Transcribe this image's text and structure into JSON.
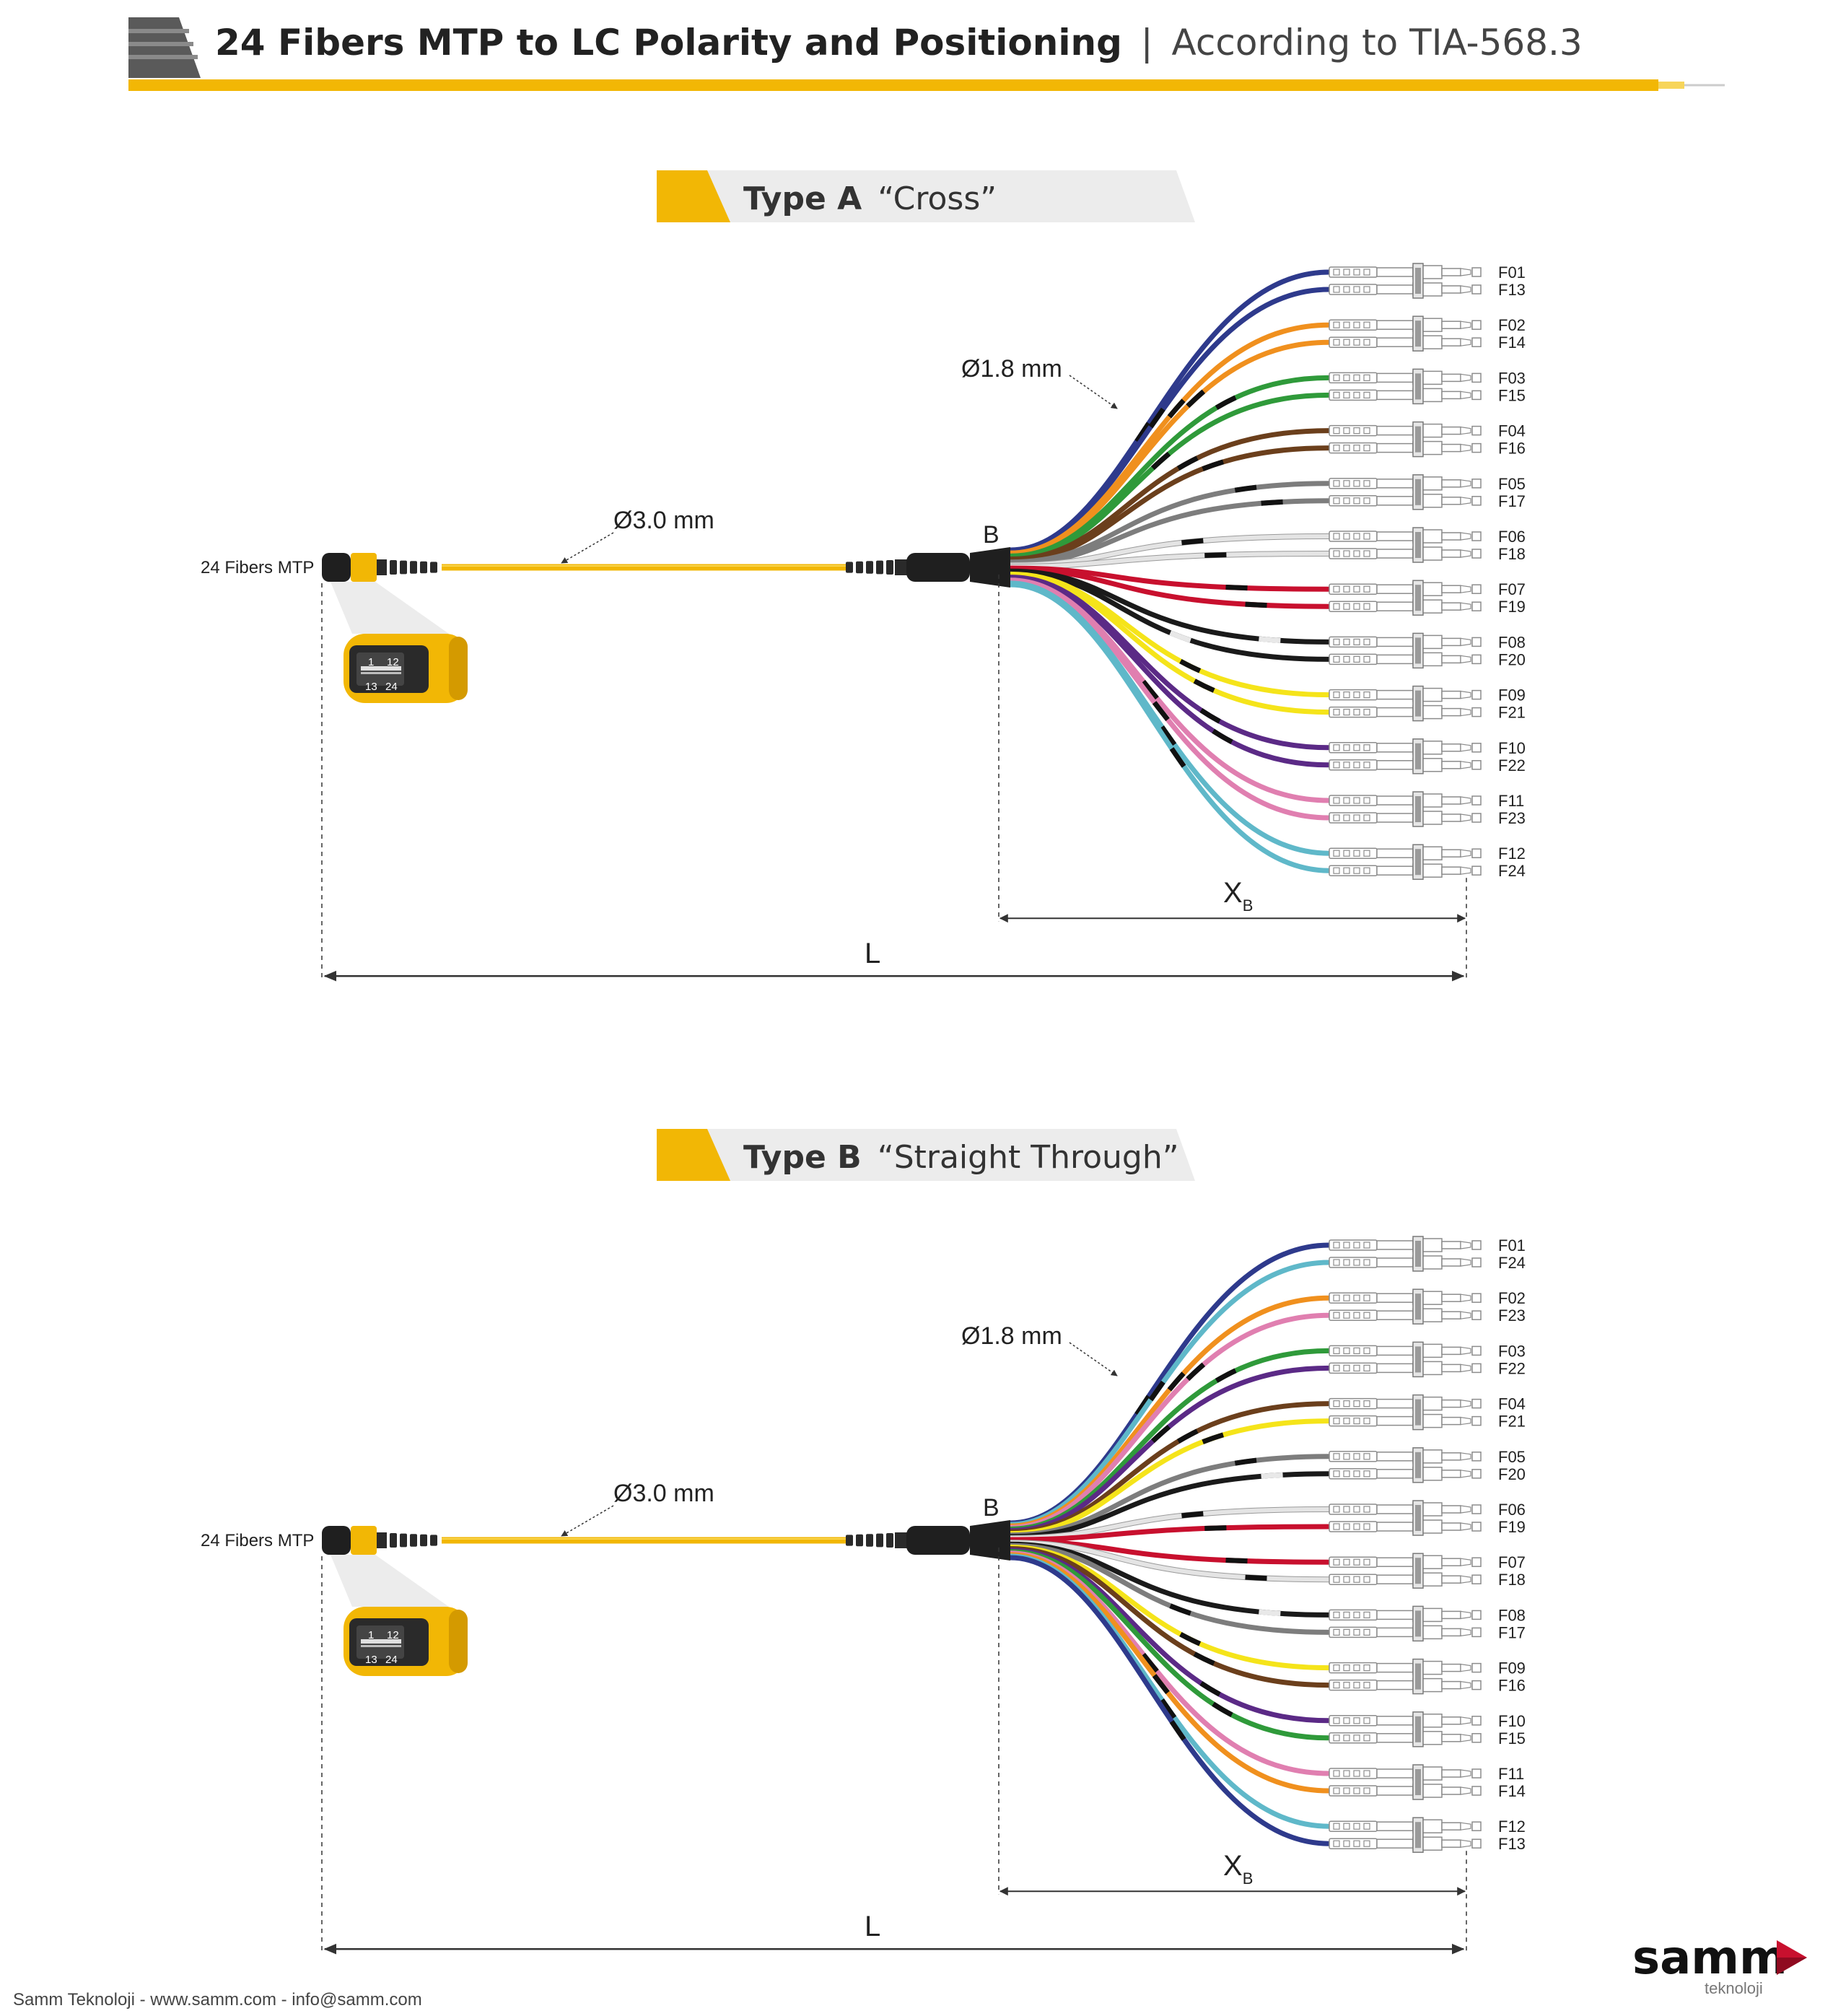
{
  "header": {
    "title_bold": "24 Fibers MTP to LC Polarity and Positioning",
    "title_sep": "|",
    "title_rest": "According to TIA-568.3"
  },
  "colors": {
    "accent_yellow": "#f2b705",
    "fiber": {
      "blue": "#2e3a8c",
      "orange": "#f0901e",
      "green": "#2f9a3a",
      "brown": "#6b3f1c",
      "slate": "#7d7d7d",
      "white": "#e4e4e4",
      "red": "#c8102e",
      "black": "#1a1a1a",
      "yellow": "#f5e41a",
      "violet": "#5b2a86",
      "rose": "#e07fb0",
      "aqua": "#5fb8c9"
    }
  },
  "sections": [
    {
      "id": "type-a",
      "type_bold": "Type A",
      "type_name": "“Cross”",
      "connector_label": "24 Fibers MTP",
      "trunk_diameter": "Ø3.0 mm",
      "breakout_diameter": "Ø1.8 mm",
      "breakout_point": "B",
      "dim_xb_main": "X",
      "dim_xb_sub": "B",
      "dim_l": "L",
      "mtp_rows": {
        "top_left": "1",
        "top_right": "12",
        "bottom_left": "13",
        "bottom_right": "24"
      },
      "pairs": [
        {
          "top": "F01",
          "bottom": "F13",
          "top_color": "blue",
          "bottom_color": "blue"
        },
        {
          "top": "F02",
          "bottom": "F14",
          "top_color": "orange",
          "bottom_color": "orange"
        },
        {
          "top": "F03",
          "bottom": "F15",
          "top_color": "green",
          "bottom_color": "green"
        },
        {
          "top": "F04",
          "bottom": "F16",
          "top_color": "brown",
          "bottom_color": "brown"
        },
        {
          "top": "F05",
          "bottom": "F17",
          "top_color": "slate",
          "bottom_color": "slate"
        },
        {
          "top": "F06",
          "bottom": "F18",
          "top_color": "white",
          "bottom_color": "white"
        },
        {
          "top": "F07",
          "bottom": "F19",
          "top_color": "red",
          "bottom_color": "red"
        },
        {
          "top": "F08",
          "bottom": "F20",
          "top_color": "black",
          "bottom_color": "black"
        },
        {
          "top": "F09",
          "bottom": "F21",
          "top_color": "yellow",
          "bottom_color": "yellow"
        },
        {
          "top": "F10",
          "bottom": "F22",
          "top_color": "violet",
          "bottom_color": "violet"
        },
        {
          "top": "F11",
          "bottom": "F23",
          "top_color": "rose",
          "bottom_color": "rose"
        },
        {
          "top": "F12",
          "bottom": "F24",
          "top_color": "aqua",
          "bottom_color": "aqua"
        }
      ]
    },
    {
      "id": "type-b",
      "type_bold": "Type B",
      "type_name": "“Straight Through”",
      "connector_label": "24 Fibers MTP",
      "trunk_diameter": "Ø3.0 mm",
      "breakout_diameter": "Ø1.8 mm",
      "breakout_point": "B",
      "dim_xb_main": "X",
      "dim_xb_sub": "B",
      "dim_l": "L",
      "mtp_rows": {
        "top_left": "1",
        "top_right": "12",
        "bottom_left": "13",
        "bottom_right": "24"
      },
      "pairs": [
        {
          "top": "F01",
          "bottom": "F24",
          "top_color": "blue",
          "bottom_color": "aqua"
        },
        {
          "top": "F02",
          "bottom": "F23",
          "top_color": "orange",
          "bottom_color": "rose"
        },
        {
          "top": "F03",
          "bottom": "F22",
          "top_color": "green",
          "bottom_color": "violet"
        },
        {
          "top": "F04",
          "bottom": "F21",
          "top_color": "brown",
          "bottom_color": "yellow"
        },
        {
          "top": "F05",
          "bottom": "F20",
          "top_color": "slate",
          "bottom_color": "black"
        },
        {
          "top": "F06",
          "bottom": "F19",
          "top_color": "white",
          "bottom_color": "red"
        },
        {
          "top": "F07",
          "bottom": "F18",
          "top_color": "red",
          "bottom_color": "white"
        },
        {
          "top": "F08",
          "bottom": "F17",
          "top_color": "black",
          "bottom_color": "slate"
        },
        {
          "top": "F09",
          "bottom": "F16",
          "top_color": "yellow",
          "bottom_color": "brown"
        },
        {
          "top": "F10",
          "bottom": "F15",
          "top_color": "violet",
          "bottom_color": "green"
        },
        {
          "top": "F11",
          "bottom": "F14",
          "top_color": "rose",
          "bottom_color": "orange"
        },
        {
          "top": "F12",
          "bottom": "F13",
          "top_color": "aqua",
          "bottom_color": "blue"
        }
      ]
    }
  ],
  "footer": {
    "contact": "Samm Teknoloji - www.samm.com - info@samm.com",
    "logo_text": "samm",
    "logo_sub": "teknoloji"
  }
}
